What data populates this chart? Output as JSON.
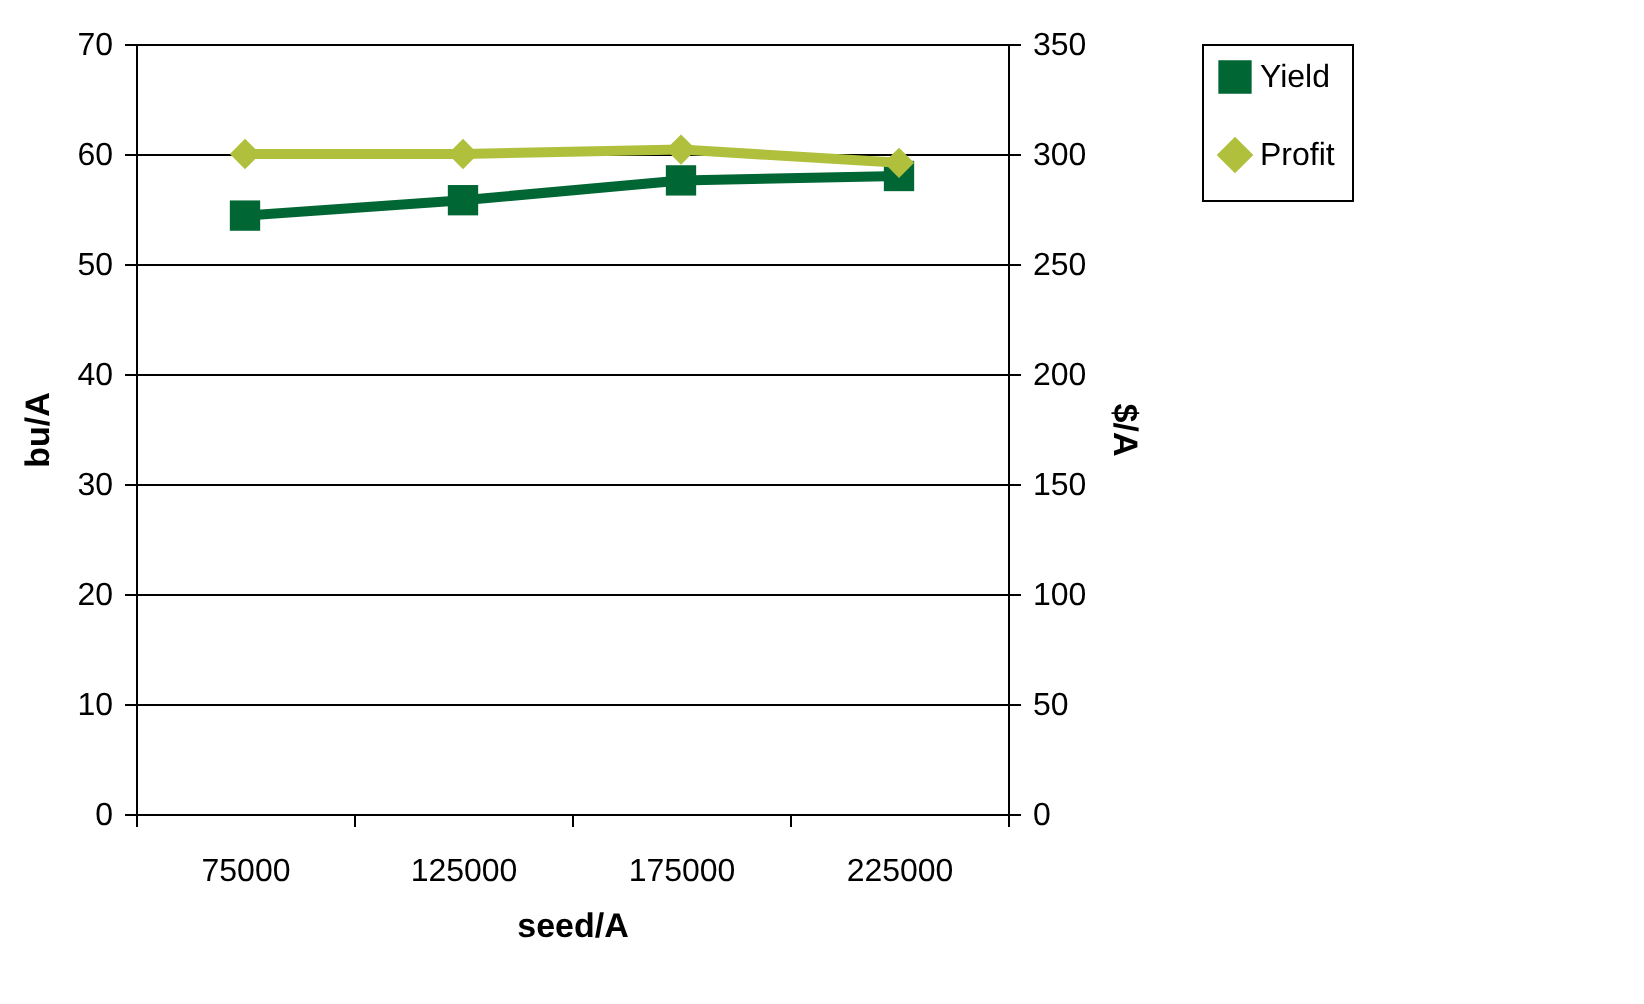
{
  "chart_data": {
    "type": "line",
    "xlabel": "seed/A",
    "ylabel": "bu/A",
    "y2label": "$/A",
    "categories": [
      "75000",
      "125000",
      "175000",
      "225000"
    ],
    "series": [
      {
        "name": "Yield",
        "color": "#006633",
        "marker": "square",
        "values": [
          54.4,
          55.8,
          57.6,
          58.0
        ]
      },
      {
        "name": "Profit",
        "color": "#b0c03c",
        "marker": "diamond",
        "axis": "y2",
        "values": [
          300,
          300,
          302,
          296
        ]
      }
    ],
    "ylim": [
      0,
      70
    ],
    "yticks": [
      0,
      10,
      20,
      30,
      40,
      50,
      60,
      70
    ],
    "y2lim": [
      0,
      350
    ],
    "y2ticks": [
      0,
      50,
      100,
      150,
      200,
      250,
      300,
      350
    ],
    "grid": "y",
    "legend": "right",
    "line_style": "solid"
  }
}
